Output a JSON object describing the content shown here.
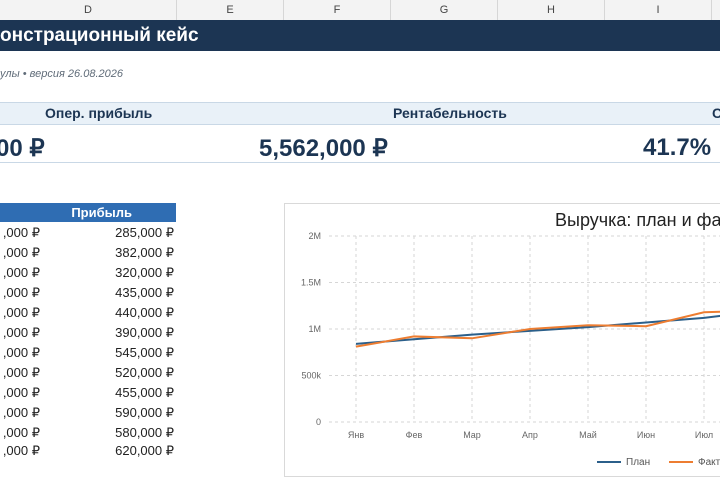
{
  "sheet": {
    "columns": [
      "D",
      "E",
      "F",
      "G",
      "H",
      "I"
    ],
    "title": "онстрационный кейс",
    "subtitle": "улы • версия 26.08.2026"
  },
  "kpis": {
    "label_1": "Опер. прибыль",
    "value_1": "00 ₽",
    "label_2": "Рентабельность",
    "value_2": "5,562,000 ₽",
    "label_3": "С",
    "value_3": "41.7%"
  },
  "table": {
    "header": "Прибыль",
    "rows": [
      {
        "c1": ",000 ₽",
        "c2": "285,000 ₽"
      },
      {
        "c1": ",000 ₽",
        "c2": "382,000 ₽"
      },
      {
        "c1": ",000 ₽",
        "c2": "320,000 ₽"
      },
      {
        "c1": ",000 ₽",
        "c2": "435,000 ₽"
      },
      {
        "c1": ",000 ₽",
        "c2": "440,000 ₽"
      },
      {
        "c1": ",000 ₽",
        "c2": "390,000 ₽"
      },
      {
        "c1": ",000 ₽",
        "c2": "545,000 ₽"
      },
      {
        "c1": ",000 ₽",
        "c2": "520,000 ₽"
      },
      {
        "c1": ",000 ₽",
        "c2": "455,000 ₽"
      },
      {
        "c1": ",000 ₽",
        "c2": "590,000 ₽"
      },
      {
        "c1": ",000 ₽",
        "c2": "580,000 ₽"
      },
      {
        "c1": ",000 ₽",
        "c2": "620,000 ₽"
      }
    ]
  },
  "chart_data": {
    "type": "line",
    "title": "Выручка: план и фа",
    "categories": [
      "Янв",
      "Фев",
      "Мар",
      "Апр",
      "Май",
      "Июн",
      "Июл"
    ],
    "ylim": [
      0,
      2000000
    ],
    "y_ticks": [
      {
        "value": 0,
        "label": "0"
      },
      {
        "value": 500000,
        "label": "500k"
      },
      {
        "value": 1000000,
        "label": "1M"
      },
      {
        "value": 1500000,
        "label": "1.5M"
      },
      {
        "value": 2000000,
        "label": "2M"
      }
    ],
    "grid": true,
    "legend_position": "bottom-right",
    "series": [
      {
        "name": "План",
        "color": "#2b5f8a",
        "values": [
          840000,
          890000,
          940000,
          980000,
          1020000,
          1070000,
          1120000
        ]
      },
      {
        "name": "Факт",
        "color": "#ed7d31",
        "values": [
          810000,
          920000,
          900000,
          1000000,
          1040000,
          1030000,
          1180000
        ]
      }
    ]
  }
}
